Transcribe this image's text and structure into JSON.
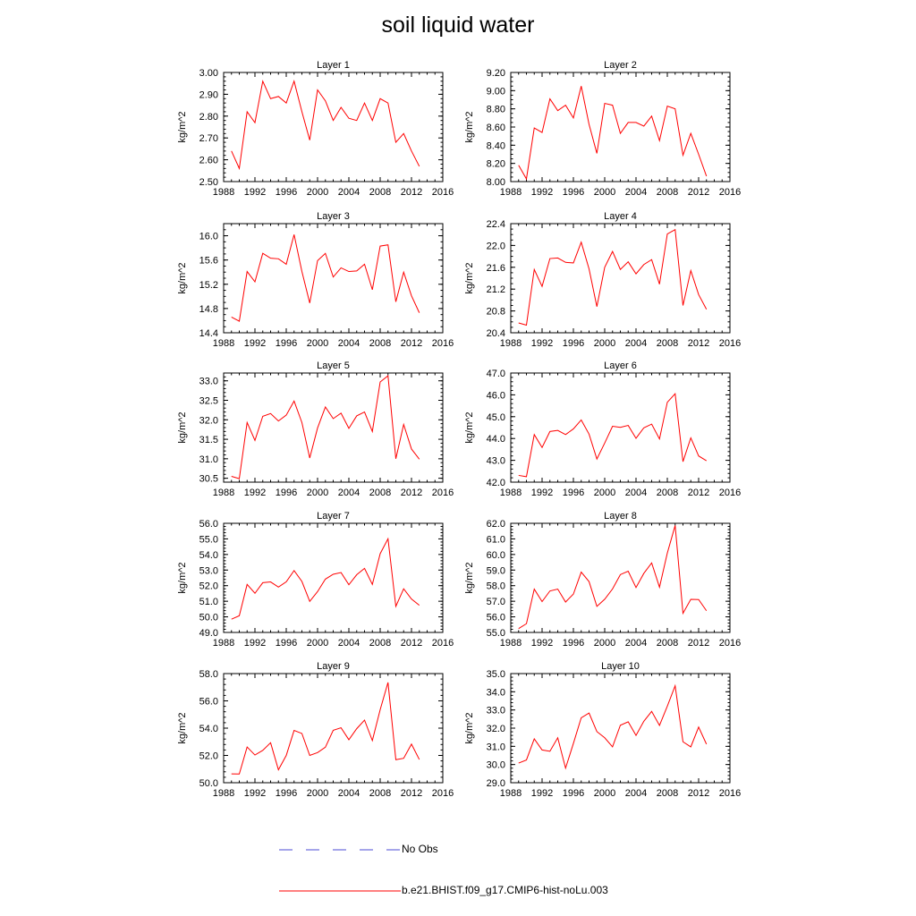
{
  "title": "soil liquid water",
  "legend": {
    "obs_label": "No Obs",
    "obs_color": "#4b4bd6",
    "model_label": "b.e21.BHIST.f09_g17.CMIP6-hist-noLu.003",
    "model_color": "#ff0000"
  },
  "chart_data": [
    {
      "type": "line",
      "title": "Layer 1",
      "ylabel": "kg/m^2",
      "xlim": [
        1988,
        2016
      ],
      "xticks": [
        1988,
        1992,
        1996,
        2000,
        2004,
        2008,
        2012,
        2016
      ],
      "ylim": [
        2.5,
        3.0
      ],
      "yticks": [
        "2.50",
        "2.60",
        "2.70",
        "2.80",
        "2.90",
        "3.00"
      ],
      "yminor": 5,
      "series": [
        {
          "x": [
            1989,
            1990,
            1991,
            1992,
            1993,
            1994,
            1995,
            1996,
            1997,
            1998,
            1999,
            2000,
            2001,
            2002,
            2003,
            2004,
            2005,
            2006,
            2007,
            2008,
            2009,
            2010,
            2011,
            2012,
            2013
          ],
          "values": [
            2.64,
            2.56,
            2.82,
            2.77,
            2.96,
            2.88,
            2.89,
            2.86,
            2.96,
            2.82,
            2.69,
            2.92,
            2.87,
            2.78,
            2.84,
            2.79,
            2.78,
            2.86,
            2.78,
            2.88,
            2.86,
            2.68,
            2.72,
            2.64,
            2.57
          ]
        }
      ]
    },
    {
      "type": "line",
      "title": "Layer 2",
      "ylabel": "kg/m^2",
      "xlim": [
        1988,
        2016
      ],
      "xticks": [
        1988,
        1992,
        1996,
        2000,
        2004,
        2008,
        2012,
        2016
      ],
      "ylim": [
        8.0,
        9.2
      ],
      "yticks": [
        "8.00",
        "8.20",
        "8.40",
        "8.60",
        "8.80",
        "9.00",
        "9.20"
      ],
      "yminor": 4,
      "series": [
        {
          "x": [
            1989,
            1990,
            1991,
            1992,
            1993,
            1994,
            1995,
            1996,
            1997,
            1998,
            1999,
            2000,
            2001,
            2002,
            2003,
            2004,
            2005,
            2006,
            2007,
            2008,
            2009,
            2010,
            2011,
            2012,
            2013
          ],
          "values": [
            8.18,
            8.03,
            8.59,
            8.54,
            8.91,
            8.78,
            8.84,
            8.7,
            9.05,
            8.63,
            8.31,
            8.86,
            8.84,
            8.53,
            8.65,
            8.65,
            8.61,
            8.72,
            8.45,
            8.83,
            8.8,
            8.29,
            8.53,
            8.3,
            8.06
          ]
        }
      ]
    },
    {
      "type": "line",
      "title": "Layer 3",
      "ylabel": "kg/m^2",
      "xlim": [
        1988,
        2016
      ],
      "xticks": [
        1988,
        1992,
        1996,
        2000,
        2004,
        2008,
        2012,
        2016
      ],
      "ylim": [
        14.4,
        16.2
      ],
      "yticks": [
        "14.4",
        "14.8",
        "15.2",
        "15.6",
        "16.0"
      ],
      "yminor": 4,
      "series": [
        {
          "x": [
            1989,
            1990,
            1991,
            1992,
            1993,
            1994,
            1995,
            1996,
            1997,
            1998,
            1999,
            2000,
            2001,
            2002,
            2003,
            2004,
            2005,
            2006,
            2007,
            2008,
            2009,
            2010,
            2011,
            2012,
            2013
          ],
          "values": [
            14.66,
            14.59,
            15.41,
            15.24,
            15.71,
            15.63,
            15.62,
            15.53,
            16.02,
            15.41,
            14.89,
            15.59,
            15.71,
            15.32,
            15.47,
            15.41,
            15.42,
            15.53,
            15.11,
            15.83,
            15.85,
            14.91,
            15.4,
            15.01,
            14.73
          ]
        }
      ]
    },
    {
      "type": "line",
      "title": "Layer 4",
      "ylabel": "kg/m^2",
      "xlim": [
        1988,
        2016
      ],
      "xticks": [
        1988,
        1992,
        1996,
        2000,
        2004,
        2008,
        2012,
        2016
      ],
      "ylim": [
        20.4,
        22.4
      ],
      "yticks": [
        "20.4",
        "20.8",
        "21.2",
        "21.6",
        "22.0",
        "22.4"
      ],
      "yminor": 4,
      "series": [
        {
          "x": [
            1989,
            1990,
            1991,
            1992,
            1993,
            1994,
            1995,
            1996,
            1997,
            1998,
            1999,
            2000,
            2001,
            2002,
            2003,
            2004,
            2005,
            2006,
            2007,
            2008,
            2009,
            2010,
            2011,
            2012,
            2013
          ],
          "values": [
            20.58,
            20.54,
            21.56,
            21.25,
            21.76,
            21.77,
            21.69,
            21.68,
            22.06,
            21.57,
            20.88,
            21.6,
            21.89,
            21.56,
            21.7,
            21.48,
            21.65,
            21.74,
            21.29,
            22.21,
            22.29,
            20.9,
            21.54,
            21.1,
            20.83
          ]
        }
      ]
    },
    {
      "type": "line",
      "title": "Layer 5",
      "ylabel": "kg/m^2",
      "xlim": [
        1988,
        2016
      ],
      "xticks": [
        1988,
        1992,
        1996,
        2000,
        2004,
        2008,
        2012,
        2016
      ],
      "ylim": [
        30.4,
        33.2
      ],
      "yticks": [
        "30.5",
        "31.0",
        "31.5",
        "32.0",
        "32.5",
        "33.0"
      ],
      "yminor": 5,
      "series": [
        {
          "x": [
            1989,
            1990,
            1991,
            1992,
            1993,
            1994,
            1995,
            1996,
            1997,
            1998,
            1999,
            2000,
            2001,
            2002,
            2003,
            2004,
            2005,
            2006,
            2007,
            2008,
            2009,
            2010,
            2011,
            2012,
            2013
          ],
          "values": [
            30.55,
            30.49,
            31.93,
            31.47,
            32.09,
            32.16,
            31.97,
            32.12,
            32.48,
            31.93,
            31.02,
            31.79,
            32.33,
            32.03,
            32.17,
            31.78,
            32.1,
            32.2,
            31.7,
            32.97,
            33.13,
            31.0,
            31.88,
            31.25,
            30.99
          ]
        }
      ]
    },
    {
      "type": "line",
      "title": "Layer 6",
      "ylabel": "kg/m^2",
      "xlim": [
        1988,
        2016
      ],
      "xticks": [
        1988,
        1992,
        1996,
        2000,
        2004,
        2008,
        2012,
        2016
      ],
      "ylim": [
        42.0,
        47.0
      ],
      "yticks": [
        "42.0",
        "43.0",
        "44.0",
        "45.0",
        "46.0",
        "47.0"
      ],
      "yminor": 5,
      "series": [
        {
          "x": [
            1989,
            1990,
            1991,
            1992,
            1993,
            1994,
            1995,
            1996,
            1997,
            1998,
            1999,
            2000,
            2001,
            2002,
            2003,
            2004,
            2005,
            2006,
            2007,
            2008,
            2009,
            2010,
            2011,
            2012,
            2013
          ],
          "values": [
            42.31,
            42.25,
            44.18,
            43.59,
            44.32,
            44.37,
            44.18,
            44.44,
            44.85,
            44.2,
            43.06,
            43.79,
            44.56,
            44.51,
            44.6,
            44.01,
            44.49,
            44.66,
            43.98,
            45.66,
            46.05,
            42.94,
            44.03,
            43.2,
            42.98
          ]
        }
      ]
    },
    {
      "type": "line",
      "title": "Layer 7",
      "ylabel": "kg/m^2",
      "xlim": [
        1988,
        2016
      ],
      "xticks": [
        1988,
        1992,
        1996,
        2000,
        2004,
        2008,
        2012,
        2016
      ],
      "ylim": [
        49.0,
        56.0
      ],
      "yticks": [
        "49.0",
        "50.0",
        "51.0",
        "52.0",
        "53.0",
        "54.0",
        "55.0",
        "56.0"
      ],
      "yminor": 5,
      "series": [
        {
          "x": [
            1989,
            1990,
            1991,
            1992,
            1993,
            1994,
            1995,
            1996,
            1997,
            1998,
            1999,
            2000,
            2001,
            2002,
            2003,
            2004,
            2005,
            2006,
            2007,
            2008,
            2009,
            2010,
            2011,
            2012,
            2013
          ],
          "values": [
            49.85,
            50.07,
            52.08,
            51.51,
            52.19,
            52.24,
            51.91,
            52.25,
            52.97,
            52.27,
            50.99,
            51.62,
            52.42,
            52.73,
            52.84,
            52.06,
            52.7,
            53.11,
            52.08,
            54.05,
            55.01,
            50.67,
            51.8,
            51.14,
            50.74
          ]
        }
      ]
    },
    {
      "type": "line",
      "title": "Layer 8",
      "ylabel": "kg/m^2",
      "xlim": [
        1988,
        2016
      ],
      "xticks": [
        1988,
        1992,
        1996,
        2000,
        2004,
        2008,
        2012,
        2016
      ],
      "ylim": [
        55.0,
        62.0
      ],
      "yticks": [
        "55.0",
        "56.0",
        "57.0",
        "58.0",
        "59.0",
        "60.0",
        "61.0",
        "62.0"
      ],
      "yminor": 5,
      "series": [
        {
          "x": [
            1989,
            1990,
            1991,
            1992,
            1993,
            1994,
            1995,
            1996,
            1997,
            1998,
            1999,
            2000,
            2001,
            2002,
            2003,
            2004,
            2005,
            2006,
            2007,
            2008,
            2009,
            2010,
            2011,
            2012,
            2013
          ],
          "values": [
            55.25,
            55.56,
            57.78,
            56.98,
            57.66,
            57.78,
            56.95,
            57.46,
            58.87,
            58.26,
            56.67,
            57.13,
            57.79,
            58.71,
            58.93,
            57.88,
            58.79,
            59.46,
            57.9,
            60.09,
            61.86,
            56.23,
            57.12,
            57.11,
            56.39
          ]
        }
      ]
    },
    {
      "type": "line",
      "title": "Layer 9",
      "ylabel": "kg/m^2",
      "xlim": [
        1988,
        2016
      ],
      "xticks": [
        1988,
        1992,
        1996,
        2000,
        2004,
        2008,
        2012,
        2016
      ],
      "ylim": [
        50.0,
        58.0
      ],
      "yticks": [
        "50.0",
        "52.0",
        "54.0",
        "56.0",
        "58.0"
      ],
      "yminor": 5,
      "series": [
        {
          "x": [
            1989,
            1990,
            1991,
            1992,
            1993,
            1994,
            1995,
            1996,
            1997,
            1998,
            1999,
            2000,
            2001,
            2002,
            2003,
            2004,
            2005,
            2006,
            2007,
            2008,
            2009,
            2010,
            2011,
            2012,
            2013
          ],
          "values": [
            50.65,
            50.64,
            52.62,
            52.03,
            52.37,
            52.93,
            50.95,
            52.0,
            53.83,
            53.61,
            52.0,
            52.21,
            52.6,
            53.84,
            54.03,
            53.15,
            53.96,
            54.59,
            53.09,
            55.35,
            57.35,
            51.69,
            51.79,
            52.83,
            51.7
          ]
        }
      ]
    },
    {
      "type": "line",
      "title": "Layer 10",
      "ylabel": "kg/m^2",
      "xlim": [
        1988,
        2016
      ],
      "xticks": [
        1988,
        1992,
        1996,
        2000,
        2004,
        2008,
        2012,
        2016
      ],
      "ylim": [
        29.0,
        35.0
      ],
      "yticks": [
        "29.0",
        "30.0",
        "31.0",
        "32.0",
        "33.0",
        "34.0",
        "35.0"
      ],
      "yminor": 5,
      "series": [
        {
          "x": [
            1989,
            1990,
            1991,
            1992,
            1993,
            1994,
            1995,
            1996,
            1997,
            1998,
            1999,
            2000,
            2001,
            2002,
            2003,
            2004,
            2005,
            2006,
            2007,
            2008,
            2009,
            2010,
            2011,
            2012,
            2013
          ],
          "values": [
            30.08,
            30.25,
            31.41,
            30.8,
            30.73,
            31.47,
            29.8,
            31.16,
            32.57,
            32.83,
            31.81,
            31.47,
            30.97,
            32.16,
            32.35,
            31.6,
            32.38,
            32.92,
            32.15,
            33.21,
            34.33,
            31.25,
            30.97,
            32.06,
            31.12
          ]
        }
      ]
    }
  ]
}
